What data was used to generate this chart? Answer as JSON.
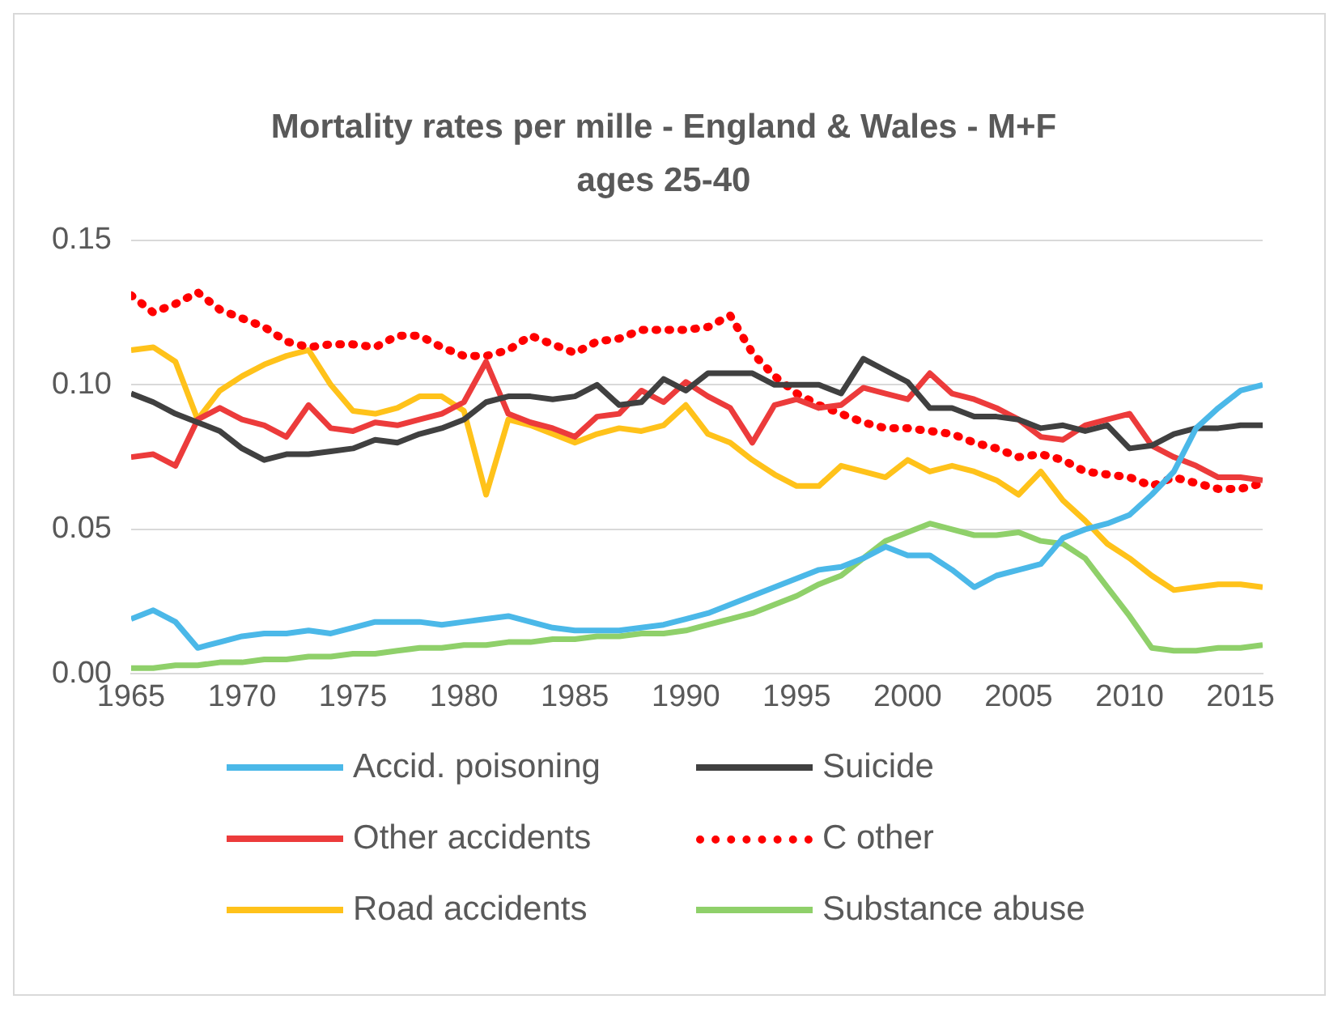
{
  "chart_data": {
    "type": "line",
    "title": "Mortality rates per mille - England & Wales - M+F ages 25-40",
    "x": [
      1965,
      1966,
      1967,
      1968,
      1969,
      1970,
      1971,
      1972,
      1973,
      1974,
      1975,
      1976,
      1977,
      1978,
      1979,
      1980,
      1981,
      1982,
      1983,
      1984,
      1985,
      1986,
      1987,
      1988,
      1989,
      1990,
      1991,
      1992,
      1993,
      1994,
      1995,
      1996,
      1997,
      1998,
      1999,
      2000,
      2001,
      2002,
      2003,
      2004,
      2005,
      2006,
      2007,
      2008,
      2009,
      2010,
      2011,
      2012,
      2013,
      2014,
      2015,
      2016
    ],
    "series": [
      {
        "name": "Accid. poisoning",
        "color": "#4bb8e8",
        "values": [
          0.019,
          0.022,
          0.018,
          0.009,
          0.011,
          0.013,
          0.014,
          0.014,
          0.015,
          0.014,
          0.016,
          0.018,
          0.018,
          0.018,
          0.017,
          0.018,
          0.019,
          0.02,
          0.018,
          0.016,
          0.015,
          0.015,
          0.015,
          0.016,
          0.017,
          0.019,
          0.021,
          0.024,
          0.027,
          0.03,
          0.033,
          0.036,
          0.037,
          0.04,
          0.044,
          0.041,
          0.041,
          0.036,
          0.03,
          0.034,
          0.036,
          0.038,
          0.047,
          0.05,
          0.052,
          0.055,
          0.062,
          0.07,
          0.085,
          0.092,
          0.098,
          0.1
        ]
      },
      {
        "name": "Suicide",
        "color": "#404040",
        "values": [
          0.097,
          0.094,
          0.09,
          0.087,
          0.084,
          0.078,
          0.074,
          0.076,
          0.076,
          0.077,
          0.078,
          0.081,
          0.08,
          0.083,
          0.085,
          0.088,
          0.094,
          0.096,
          0.096,
          0.095,
          0.096,
          0.1,
          0.093,
          0.094,
          0.102,
          0.098,
          0.104,
          0.104,
          0.104,
          0.1,
          0.1,
          0.1,
          0.097,
          0.109,
          0.105,
          0.101,
          0.092,
          0.092,
          0.089,
          0.089,
          0.088,
          0.085,
          0.086,
          0.084,
          0.086,
          0.078,
          0.079,
          0.083,
          0.085,
          0.085,
          0.086,
          0.086
        ]
      },
      {
        "name": "Other accidents",
        "color": "#ec3b3b",
        "values": [
          0.075,
          0.076,
          0.072,
          0.088,
          0.092,
          0.088,
          0.086,
          0.082,
          0.093,
          0.085,
          0.084,
          0.087,
          0.086,
          0.088,
          0.09,
          0.094,
          0.108,
          0.09,
          0.087,
          0.085,
          0.082,
          0.089,
          0.09,
          0.098,
          0.094,
          0.101,
          0.096,
          0.092,
          0.08,
          0.093,
          0.095,
          0.092,
          0.093,
          0.099,
          0.097,
          0.095,
          0.104,
          0.097,
          0.095,
          0.092,
          0.088,
          0.082,
          0.081,
          0.086,
          0.088,
          0.09,
          0.079,
          0.075,
          0.072,
          0.068,
          0.068,
          0.067
        ]
      },
      {
        "name": "C other",
        "color": "#ff0000",
        "line_style": "dotted",
        "values": [
          0.131,
          0.125,
          0.128,
          0.132,
          0.126,
          0.123,
          0.12,
          0.115,
          0.113,
          0.114,
          0.114,
          0.113,
          0.117,
          0.117,
          0.113,
          0.11,
          0.11,
          0.112,
          0.117,
          0.114,
          0.111,
          0.115,
          0.116,
          0.119,
          0.119,
          0.119,
          0.12,
          0.124,
          0.111,
          0.103,
          0.097,
          0.093,
          0.09,
          0.087,
          0.085,
          0.085,
          0.084,
          0.083,
          0.08,
          0.078,
          0.075,
          0.076,
          0.074,
          0.07,
          0.069,
          0.068,
          0.065,
          0.068,
          0.066,
          0.064,
          0.064,
          0.066
        ]
      },
      {
        "name": "Road accidents",
        "color": "#ffc21a",
        "values": [
          0.112,
          0.113,
          0.108,
          0.088,
          0.098,
          0.103,
          0.107,
          0.11,
          0.112,
          0.1,
          0.091,
          0.09,
          0.092,
          0.096,
          0.096,
          0.091,
          0.062,
          0.088,
          0.086,
          0.083,
          0.08,
          0.083,
          0.085,
          0.084,
          0.086,
          0.093,
          0.083,
          0.08,
          0.074,
          0.069,
          0.065,
          0.065,
          0.072,
          0.07,
          0.068,
          0.074,
          0.07,
          0.072,
          0.07,
          0.067,
          0.062,
          0.07,
          0.06,
          0.053,
          0.045,
          0.04,
          0.034,
          0.029,
          0.03,
          0.031,
          0.031,
          0.03
        ]
      },
      {
        "name": "Substance abuse",
        "color": "#8fd06a",
        "values": [
          0.002,
          0.002,
          0.003,
          0.003,
          0.004,
          0.004,
          0.005,
          0.005,
          0.006,
          0.006,
          0.007,
          0.007,
          0.008,
          0.009,
          0.009,
          0.01,
          0.01,
          0.011,
          0.011,
          0.012,
          0.012,
          0.013,
          0.013,
          0.014,
          0.014,
          0.015,
          0.017,
          0.019,
          0.021,
          0.024,
          0.027,
          0.031,
          0.034,
          0.04,
          0.046,
          0.049,
          0.052,
          0.05,
          0.048,
          0.048,
          0.049,
          0.046,
          0.045,
          0.04,
          0.03,
          0.02,
          0.009,
          0.008,
          0.008,
          0.009,
          0.009,
          0.01
        ]
      }
    ],
    "xlim": [
      1965,
      2016
    ],
    "xticks": [
      1965,
      1970,
      1975,
      1980,
      1985,
      1990,
      1995,
      2000,
      2005,
      2010,
      2015
    ],
    "ylim": [
      0,
      0.15
    ],
    "yticks": [
      {
        "value": 0,
        "label": "0.00"
      },
      {
        "value": 0.05,
        "label": "0.05"
      },
      {
        "value": 0.1,
        "label": "0.10"
      },
      {
        "value": 0.15,
        "label": "0.15"
      }
    ],
    "grid": "y",
    "legend": "bottom",
    "marker": "none",
    "line_style": "solid"
  }
}
